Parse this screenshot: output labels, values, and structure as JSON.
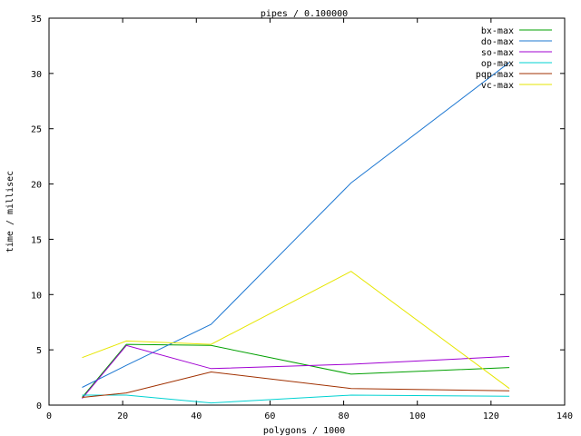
{
  "chart_data": {
    "type": "line",
    "title": "pipes / 0.100000",
    "xlabel": "polygons / 1000",
    "ylabel": "time / millisec",
    "xlim": [
      0,
      140
    ],
    "ylim": [
      0,
      35
    ],
    "xticks": [
      0,
      20,
      40,
      60,
      80,
      100,
      120,
      140
    ],
    "yticks": [
      0,
      5,
      10,
      15,
      20,
      25,
      30,
      35
    ],
    "grid": false,
    "legend_position": "top-right",
    "series": [
      {
        "name": "bx-max",
        "color": "#00a000",
        "x": [
          9,
          21,
          44,
          82,
          125
        ],
        "y": [
          0.7,
          5.5,
          5.4,
          2.8,
          3.4
        ]
      },
      {
        "name": "do-max",
        "color": "#1e78d2",
        "x": [
          9,
          21,
          44,
          82,
          125
        ],
        "y": [
          1.6,
          3.6,
          7.3,
          20.1,
          31.0
        ]
      },
      {
        "name": "so-max",
        "color": "#a000d2",
        "x": [
          9,
          21,
          44,
          82,
          125
        ],
        "y": [
          0.6,
          5.4,
          3.3,
          3.7,
          4.4
        ]
      },
      {
        "name": "op-max",
        "color": "#00d2d2",
        "x": [
          9,
          21,
          44,
          82,
          125
        ],
        "y": [
          0.9,
          0.9,
          0.2,
          0.9,
          0.8
        ]
      },
      {
        "name": "pqp-max",
        "color": "#a03000",
        "x": [
          9,
          21,
          44,
          82,
          125
        ],
        "y": [
          0.7,
          1.1,
          3.0,
          1.5,
          1.3
        ]
      },
      {
        "name": "vc-max",
        "color": "#e6e600",
        "x": [
          9,
          21,
          44,
          82,
          125
        ],
        "y": [
          4.3,
          5.8,
          5.5,
          12.1,
          1.5
        ]
      }
    ]
  }
}
